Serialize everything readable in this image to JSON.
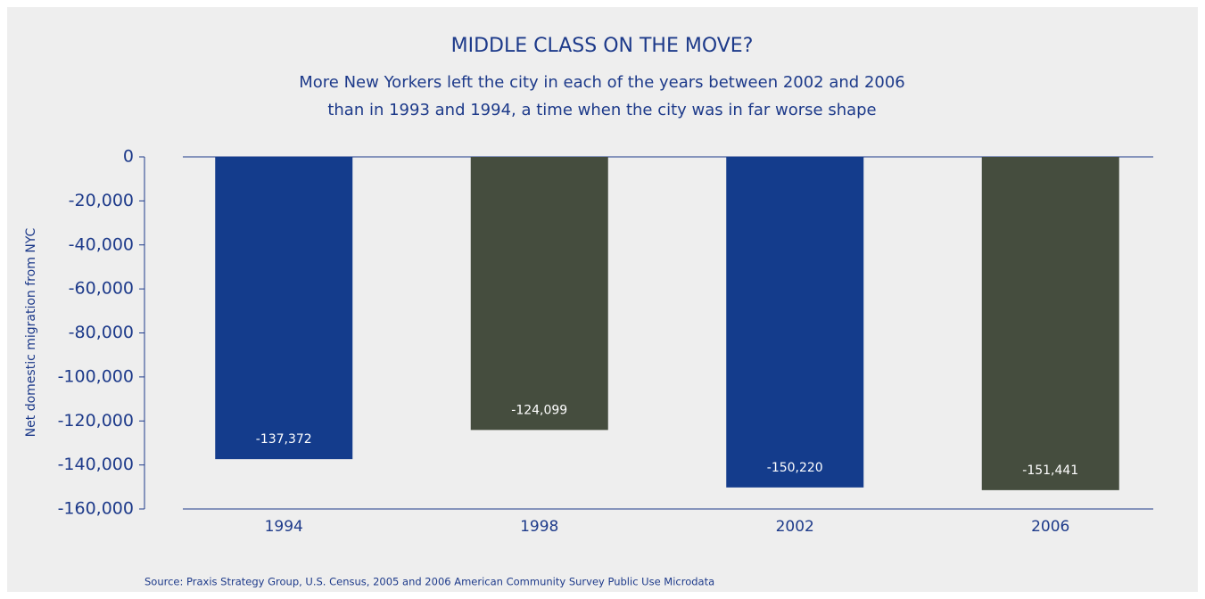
{
  "chart_data": {
    "type": "bar",
    "title": "MIDDLE CLASS ON THE MOVE?",
    "subtitle": [
      "More New Yorkers left the city in each of the years between 2002 and 2006",
      "than in 1993 and 1994, a time when the city was in far worse shape"
    ],
    "y_label": "Net domestic migration from NYC",
    "source": "Source: Praxis Strategy Group, U.S. Census, 2005 and 2006 American Community Survey Public Use Microdata",
    "categories": [
      "1994",
      "1998",
      "2002",
      "2006"
    ],
    "values": [
      -137372,
      -124099,
      -150220,
      -151441
    ],
    "value_labels": [
      "-137,372",
      "-124,099",
      "-150,220",
      "-151,441"
    ],
    "colors": [
      "#143c8c",
      "#454d3e",
      "#143c8c",
      "#454d3e"
    ],
    "ylim": [
      -160000,
      0
    ],
    "yticks": [
      0,
      {
        "value": -20000,
        "label": "-20,000"
      },
      {
        "value": -40000,
        "label": "-40,000"
      },
      {
        "value": -60000,
        "label": "-60,000"
      },
      {
        "value": -80000,
        "label": "-80,000"
      },
      {
        "value": -100000,
        "label": "-100,000"
      },
      {
        "value": -120000,
        "label": "-120,000"
      },
      {
        "value": -140000,
        "label": "-140,000"
      },
      {
        "value": -160000,
        "label": "-160,000"
      }
    ],
    "grid": false
  }
}
